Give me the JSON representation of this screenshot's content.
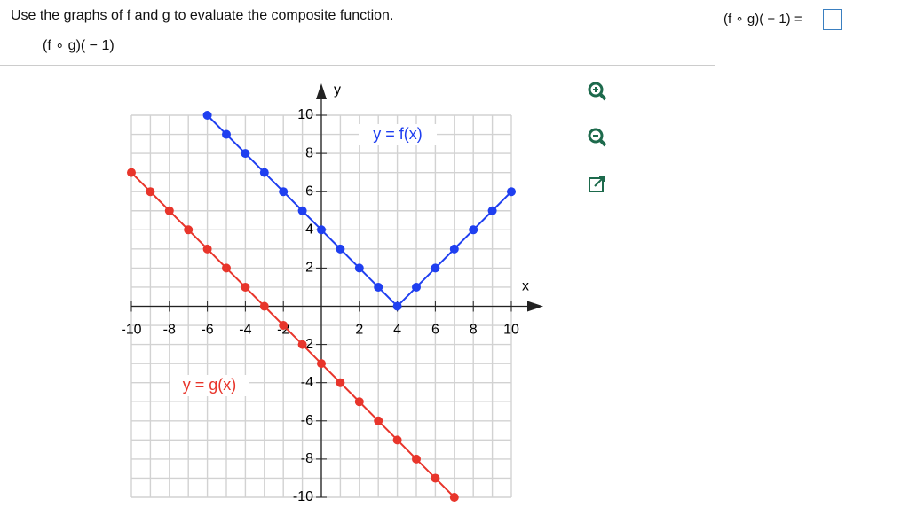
{
  "question": {
    "instruction": "Use the graphs of f and g to evaluate the composite function.",
    "expression": "(f ∘ g)( − 1)"
  },
  "answer_prompt": "(f ∘ g)( − 1) =",
  "chart_data": {
    "type": "line",
    "x_label": "x",
    "y_label": "y",
    "xlim": [
      -10,
      10
    ],
    "ylim": [
      -10,
      10
    ],
    "xticks": [
      -10,
      -8,
      -6,
      -4,
      -2,
      2,
      4,
      6,
      8,
      10
    ],
    "yticks": [
      -10,
      -8,
      -6,
      -4,
      -2,
      2,
      4,
      6,
      8,
      10
    ],
    "grid": true,
    "series": [
      {
        "name": "y = f(x)",
        "color": "#1f3ff0",
        "x": [
          -6,
          -5,
          -4,
          -3,
          -2,
          -1,
          0,
          1,
          2,
          3,
          4,
          5,
          6,
          7,
          8,
          9,
          10
        ],
        "values": [
          10,
          9,
          8,
          7,
          6,
          5,
          4,
          3,
          2,
          1,
          0,
          1,
          2,
          3,
          4,
          5,
          6
        ]
      },
      {
        "name": "y = g(x)",
        "color": "#e8352b",
        "x": [
          -10,
          -9,
          -8,
          -7,
          -6,
          -5,
          -4,
          -3,
          -2,
          -1,
          0,
          1,
          2,
          3,
          4,
          5,
          6,
          7
        ],
        "values": [
          7,
          6,
          5,
          4,
          3,
          2,
          1,
          0,
          -1,
          -2,
          -3,
          -4,
          -5,
          -6,
          -7,
          -8,
          -9,
          -10
        ]
      }
    ]
  }
}
